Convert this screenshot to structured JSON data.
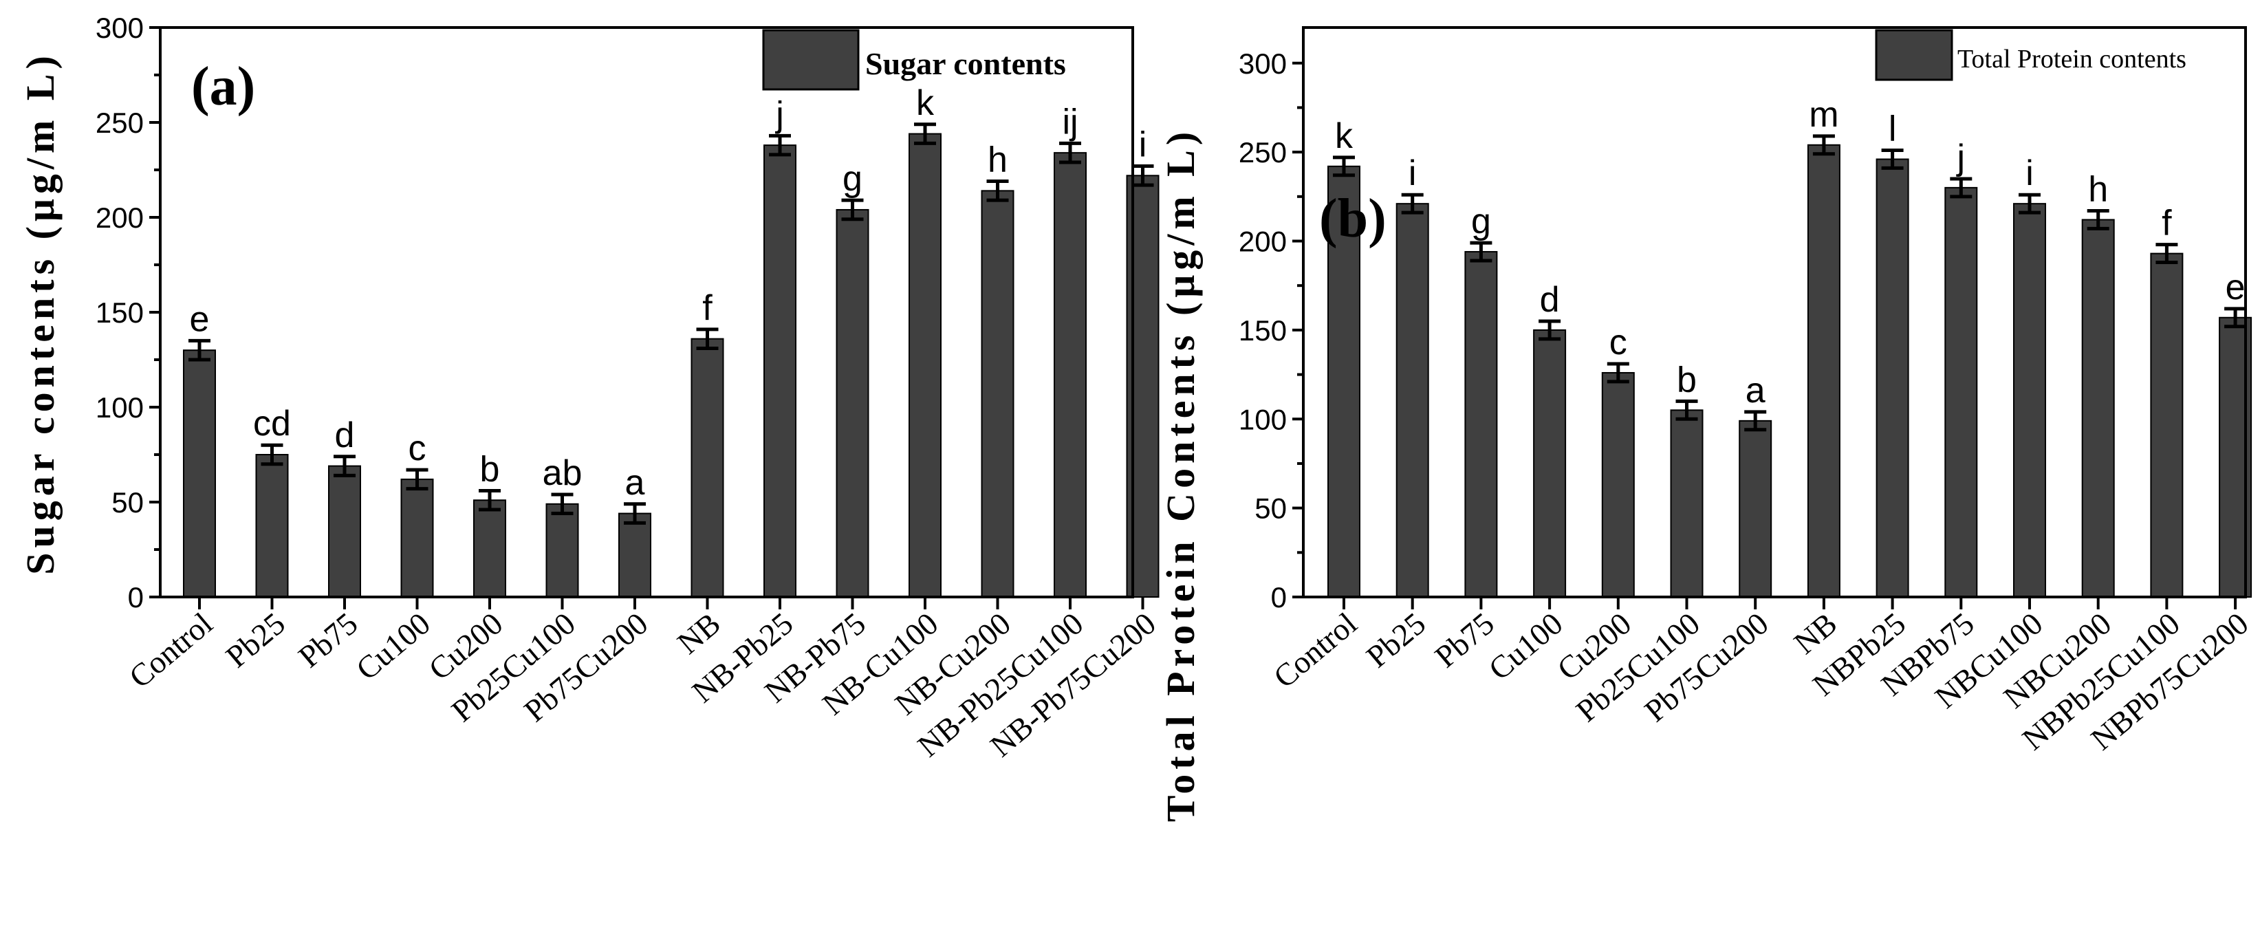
{
  "chart_data": [
    {
      "type": "bar",
      "panel_label": "(a)",
      "ylabel": "Sugar contents (μg/m L)",
      "xlabel": "",
      "legend": "Sugar contents",
      "ylim": [
        0,
        300
      ],
      "yticks": [
        "0",
        "50",
        "100",
        "150",
        "200",
        "250",
        "300"
      ],
      "categories": [
        "Control",
        "Pb25",
        "Pb75",
        "Cu100",
        "Cu200",
        "Pb25Cu100",
        "Pb75Cu200",
        "NB",
        "NB-Pb25",
        "NB-Pb75",
        "NB-Cu100",
        "NB-Cu200",
        "NB-Pb25Cu100",
        "NB-Pb75Cu200"
      ],
      "values": [
        130,
        75,
        69,
        62,
        51,
        49,
        44,
        136,
        238,
        204,
        244,
        214,
        234,
        222
      ],
      "errors": [
        5,
        5,
        5,
        5,
        5,
        5,
        5,
        5,
        5,
        5,
        5,
        5,
        5,
        5
      ],
      "significance": [
        "e",
        "cd",
        "d",
        "c",
        "b",
        "ab",
        "a",
        "f",
        "j",
        "g",
        "k",
        "h",
        "ij",
        "i"
      ]
    },
    {
      "type": "bar",
      "panel_label": "(b)",
      "ylabel": "Total Protein Contents (μg/m L)",
      "xlabel": "",
      "legend": "Total Protein contents",
      "ylim": [
        0,
        320
      ],
      "yticks": [
        "0",
        "50",
        "100",
        "150",
        "200",
        "250",
        "300"
      ],
      "categories": [
        "Control",
        "Pb25",
        "Pb75",
        "Cu100",
        "Cu200",
        "Pb25Cu100",
        "Pb75Cu200",
        "NB",
        "NBPb25",
        "NBPb75",
        "NBCu100",
        "NBCu200",
        "NBPb25Cu100",
        "NBPb75Cu200"
      ],
      "values": [
        242,
        221,
        194,
        150,
        126,
        105,
        99,
        254,
        246,
        230,
        221,
        212,
        193,
        157
      ],
      "errors": [
        5,
        5,
        5,
        5,
        5,
        5,
        5,
        5,
        5,
        5,
        5,
        5,
        5,
        5
      ],
      "significance": [
        "k",
        "i",
        "g",
        "d",
        "c",
        "b",
        "a",
        "m",
        "l",
        "j",
        "i",
        "h",
        "f",
        "e"
      ]
    }
  ]
}
